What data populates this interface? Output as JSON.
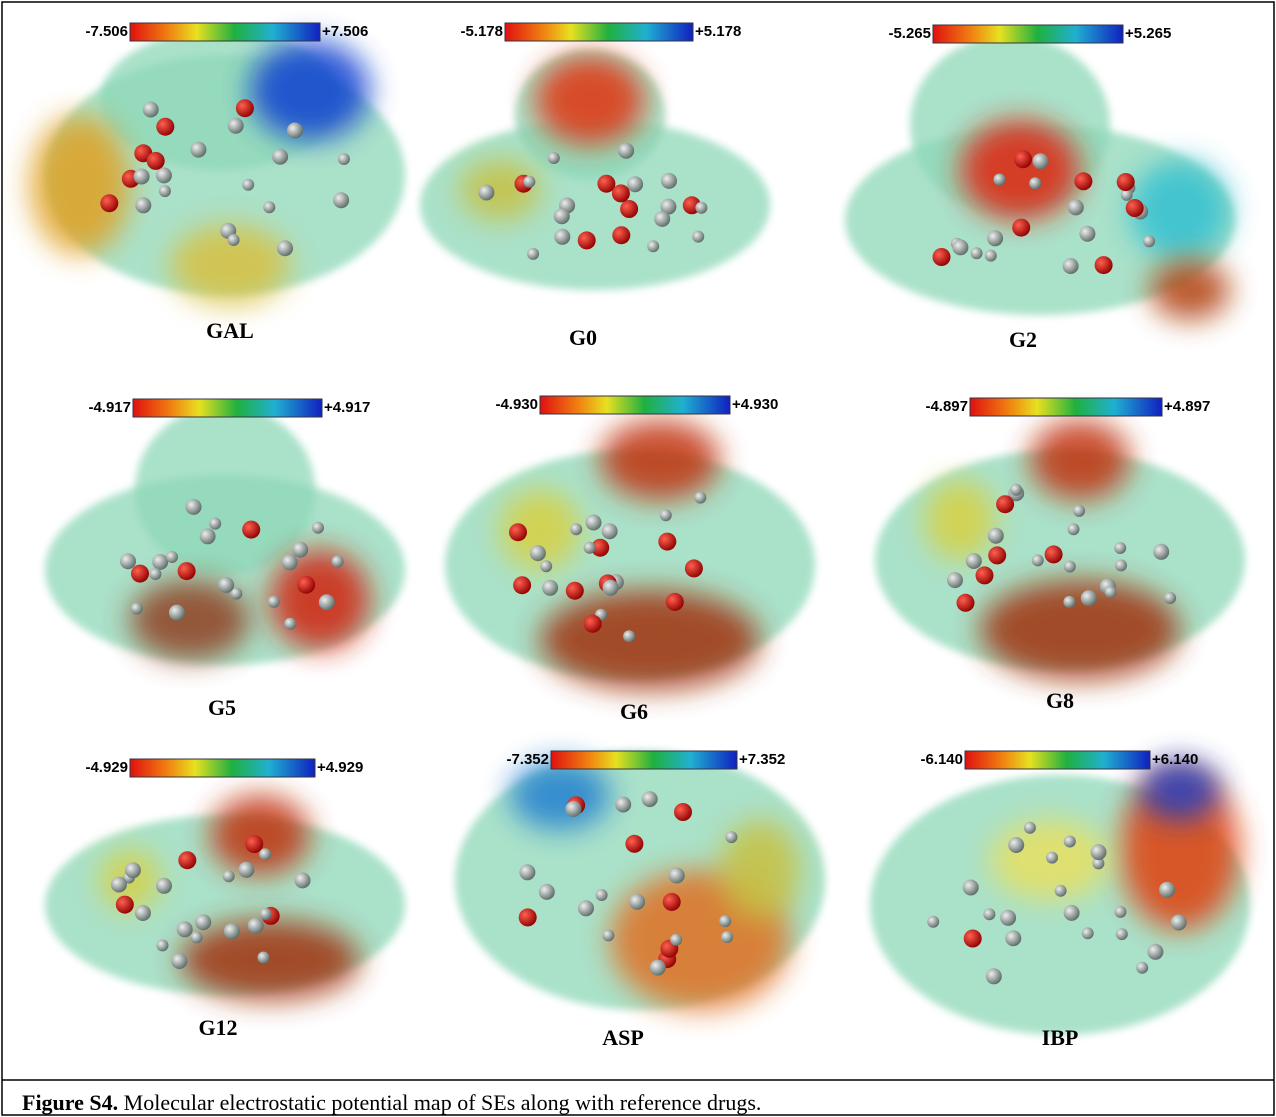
{
  "panels": [
    {
      "name": "GAL",
      "min_label": "-7.506",
      "max_label": "+7.506"
    },
    {
      "name": "G0",
      "min_label": "-5.178",
      "max_label": "+5.178"
    },
    {
      "name": "G2",
      "min_label": "-5.265",
      "max_label": "+5.265"
    },
    {
      "name": "G5",
      "min_label": "-4.917",
      "max_label": "+4.917"
    },
    {
      "name": "G6",
      "min_label": "-4.930",
      "max_label": "+4.930"
    },
    {
      "name": "G8",
      "min_label": "-4.897",
      "max_label": "+4.897"
    },
    {
      "name": "G12",
      "min_label": "-4.929",
      "max_label": "+4.929"
    },
    {
      "name": "ASP",
      "min_label": "-7.352",
      "max_label": "+7.352"
    },
    {
      "name": "IBP",
      "min_label": "-6.140",
      "max_label": "+6.140"
    }
  ],
  "caption": {
    "label": "Figure S4.",
    "text": "Molecular electrostatic potential map of SEs along with reference drugs."
  }
}
